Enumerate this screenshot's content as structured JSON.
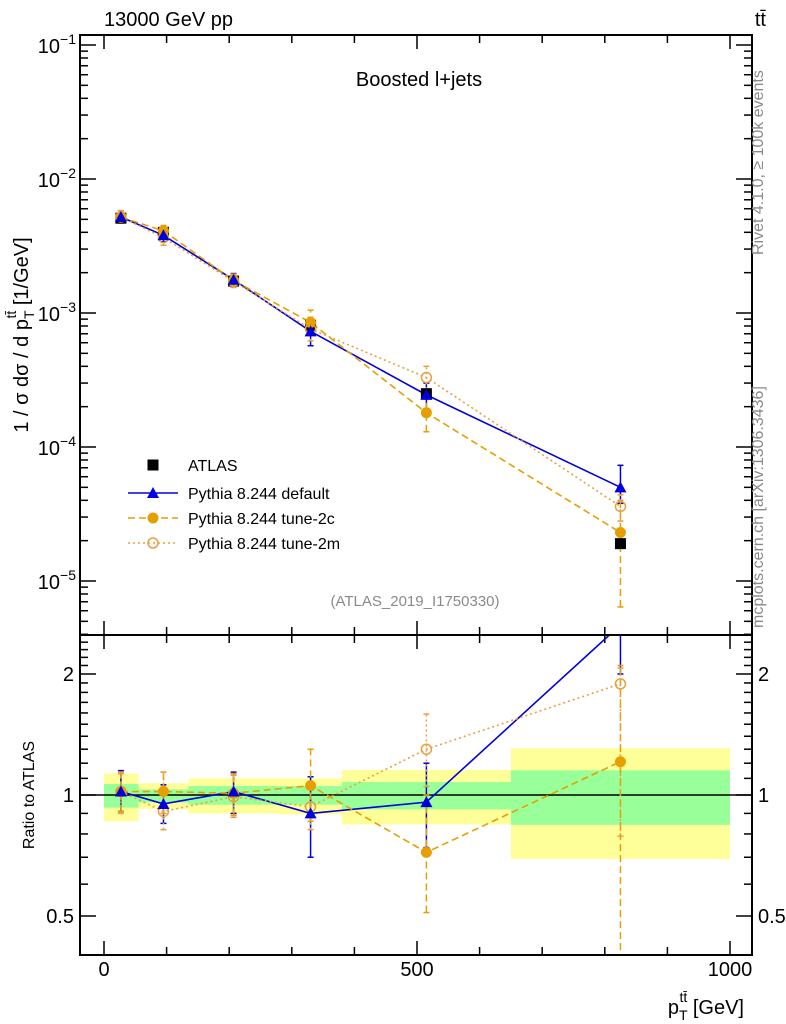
{
  "chart_data": {
    "type": "line",
    "header_left": "13000 GeV pp",
    "header_right": "tt̄",
    "title": "Boosted l+jets",
    "ylabel": "1 / σ dσ / d p_T^{tt̄} [1/GeV]",
    "ylabel_parts": {
      "pre": "1 / σ dσ / d p",
      "sub": "T",
      "sup": "tt̄",
      "post": " [1/GeV]"
    },
    "xlabel_parts": {
      "pre": "p",
      "sub": "T",
      "sup": "tt̄",
      "post": " [GeV]"
    },
    "ratio_ylabel": "Ratio to ATLAS",
    "analysis_label": "(ATLAS_2019_I1750330)",
    "side_label_top": "Rivet 4.1.0, ≥ 100k events",
    "side_label_bottom": "mcplots.cern.ch [arXiv:1306.3436]",
    "xlim": [
      -38,
      1035
    ],
    "ylim": [
      3.9e-06,
      0.119
    ],
    "ratio_ylim": [
      0.4,
      2.5
    ],
    "yscale": "log",
    "ratio_yscale": "log",
    "x_ticks": [
      0,
      500,
      1000
    ],
    "x_tick_labels": [
      "0",
      "500",
      "1000"
    ],
    "y_ticks": [
      1e-05,
      0.0001,
      0.001,
      0.01,
      0.1
    ],
    "y_tick_labels": [
      {
        "base": "10",
        "exp": "−5"
      },
      {
        "base": "10",
        "exp": "−4"
      },
      {
        "base": "10",
        "exp": "−3"
      },
      {
        "base": "10",
        "exp": "−2"
      },
      {
        "base": "10",
        "exp": "−1"
      }
    ],
    "ratio_ticks": [
      0.5,
      1,
      2
    ],
    "ratio_tick_labels": [
      "0.5",
      "1",
      "2"
    ],
    "bin_edges": [
      0,
      55,
      135,
      280,
      380,
      650,
      1000
    ],
    "x": [
      27,
      95,
      207,
      330,
      515,
      825
    ],
    "data": {
      "name": "ATLAS",
      "color": "#000000",
      "values": [
        0.0051,
        0.004,
        0.00173,
        0.00081,
        0.00025,
        1.9e-05
      ],
      "ratio_band_stat": [
        [
          0.93,
          1.065
        ],
        [
          0.958,
          1.033
        ],
        [
          0.946,
          1.053
        ],
        [
          0.946,
          1.053
        ],
        [
          0.921,
          1.077
        ],
        [
          0.843,
          1.152
        ]
      ],
      "ratio_band_total": [
        [
          0.86,
          1.13
        ],
        [
          0.923,
          1.07
        ],
        [
          0.9,
          1.1
        ],
        [
          0.895,
          1.1
        ],
        [
          0.845,
          1.154
        ],
        [
          0.693,
          1.307
        ]
      ],
      "band_colors": {
        "stat": "#99ff99",
        "total": "#ffff99"
      }
    },
    "series": [
      {
        "name": "Pythia 8.244 default",
        "color": "#0000dd",
        "marker": "triangle",
        "linestyle": "solid",
        "values": [
          0.0052,
          0.0038,
          0.00177,
          0.00073,
          0.000245,
          5e-05
        ],
        "errors": [
          [
            0.0047,
            0.0058
          ],
          [
            0.0034,
            0.0041
          ],
          [
            0.00157,
            0.00197
          ],
          [
            0.00057,
            0.0009
          ],
          [
            0.00019,
            0.0003
          ],
          [
            3.8e-05,
            7.3e-05
          ]
        ],
        "ratio": [
          1.02,
          0.95,
          1.02,
          0.9,
          0.96,
          2.65
        ],
        "ratio_errors": [
          [
            0.91,
            1.15
          ],
          [
            0.85,
            1.06
          ],
          [
            0.9,
            1.14
          ],
          [
            0.7,
            1.11
          ],
          [
            0.74,
            1.2
          ],
          [
            2.0,
            3.8
          ]
        ]
      },
      {
        "name": "Pythia 8.244 tune-2c",
        "color": "#e69f00",
        "marker": "circle-filled",
        "linestyle": "dashed",
        "values": [
          0.0052,
          0.0041,
          0.00175,
          0.00085,
          0.00018,
          2.3e-05
        ],
        "errors": [
          [
            0.0047,
            0.0058
          ],
          [
            0.0037,
            0.0045
          ],
          [
            0.0016,
            0.00195
          ],
          [
            0.00069,
            0.00105
          ],
          [
            0.00013,
            0.00023
          ],
          [
            6.4e-06,
            4e-05
          ]
        ],
        "ratio": [
          1.02,
          1.02,
          1.01,
          1.055,
          0.72,
          1.21
        ],
        "ratio_errors": [
          [
            0.91,
            1.13
          ],
          [
            0.9,
            1.14
          ],
          [
            0.89,
            1.13
          ],
          [
            0.86,
            1.3
          ],
          [
            0.51,
            1.0
          ],
          [
            0.3,
            2.1
          ]
        ]
      },
      {
        "name": "Pythia 8.244 tune-2m",
        "color": "#e8a040",
        "marker": "circle-open",
        "linestyle": "dotted",
        "values": [
          0.0052,
          0.00365,
          0.00172,
          0.00076,
          0.00033,
          3.6e-05
        ],
        "errors": [
          [
            0.0047,
            0.0058
          ],
          [
            0.0032,
            0.0041
          ],
          [
            0.00155,
            0.0019
          ],
          [
            0.00062,
            0.00093
          ],
          [
            0.00027,
            0.0004
          ],
          [
            2.8e-05,
            4.4e-05
          ]
        ],
        "ratio": [
          1.02,
          0.91,
          0.99,
          0.935,
          1.3,
          1.89
        ],
        "ratio_errors": [
          [
            0.9,
            1.14
          ],
          [
            0.82,
            1.14
          ],
          [
            0.88,
            1.12
          ],
          [
            0.82,
            1.07
          ],
          [
            1.05,
            1.59
          ],
          [
            0.79,
            2.07
          ]
        ]
      }
    ],
    "legend_position": "lower-left"
  }
}
